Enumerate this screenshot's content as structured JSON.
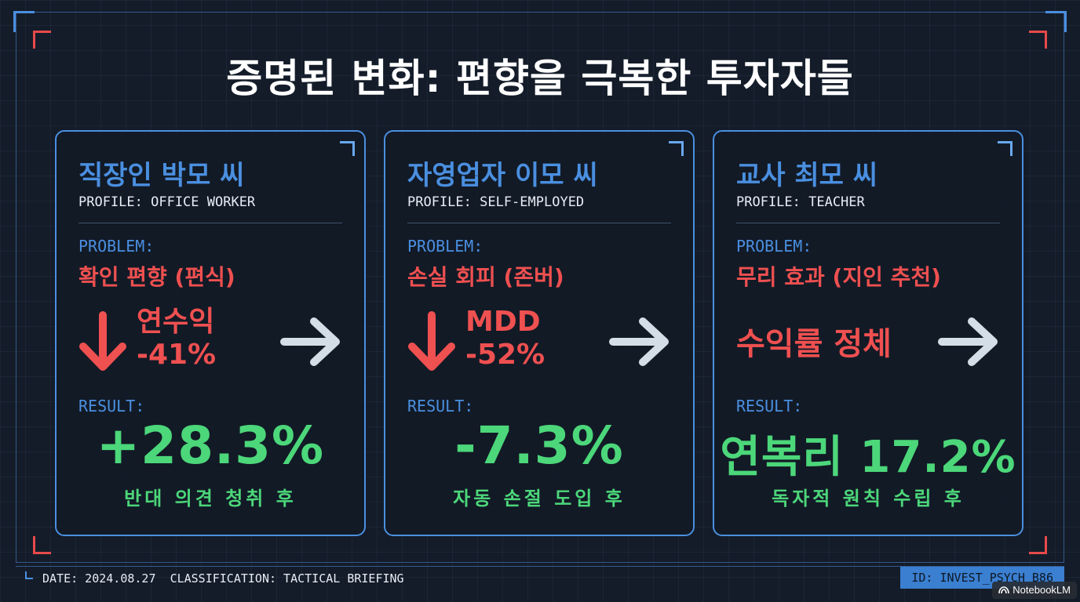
{
  "title": "증명된 변화: 편향을 극복한 투자자들",
  "colors": {
    "background": "#141c29",
    "accent_blue": "#4a8fe0",
    "problem_red": "#ef5050",
    "result_green": "#4cd77a",
    "arrow_gray": "#d4dee6"
  },
  "cards": [
    {
      "name": "직장인 박모 씨",
      "profile": "PROFILE: OFFICE WORKER",
      "problem_label": "PROBLEM:",
      "problem": "확인 편향 (편식)",
      "metric_label": "연수익",
      "metric_value": "-41%",
      "result_label": "RESULT:",
      "result": "+28.3%",
      "result_note": "반대 의견 청취 후"
    },
    {
      "name": "자영업자 이모 씨",
      "profile": "PROFILE: SELF-EMPLOYED",
      "problem_label": "PROBLEM:",
      "problem": "손실 회피 (존버)",
      "metric_label": "MDD",
      "metric_value": "-52%",
      "result_label": "RESULT:",
      "result": "-7.3%",
      "result_note": "자동 손절 도입 후"
    },
    {
      "name": "교사 최모 씨",
      "profile": "PROFILE: TEACHER",
      "problem_label": "PROBLEM:",
      "problem": "무리 효과 (지인 추천)",
      "metric_text": "수익률 정체",
      "result_label": "RESULT:",
      "result": "연복리 17.2%",
      "result_note": "독자적 원칙 수립 후"
    }
  ],
  "footer": {
    "date": "DATE: 2024.08.27",
    "classification": "CLASSIFICATION: TACTICAL BRIEFING",
    "id": "ID: INVEST_PSYCH_B86"
  },
  "badge": {
    "label": "NotebookLM",
    "icon": "notebooklm-logo-icon"
  }
}
